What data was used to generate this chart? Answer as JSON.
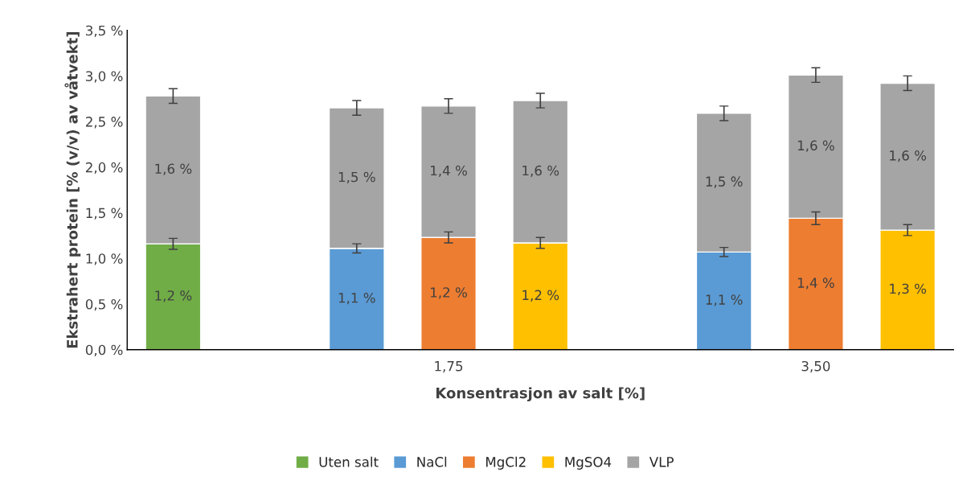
{
  "chart_data": {
    "type": "bar",
    "stacked": true,
    "xlabel": "Konsentrasjon av salt [%]",
    "ylabel": "Ekstrahert protein [% (v/v) av våtvekt]",
    "categories": [
      null,
      null,
      null,
      "1,75",
      null,
      null,
      null,
      "3,50",
      null
    ],
    "series": [
      {
        "name": "Uten salt",
        "color": "#70ad47",
        "values": [
          1.16,
          null,
          null,
          null,
          null,
          null,
          null,
          null,
          null
        ],
        "errors": [
          0.06,
          null,
          null,
          null,
          null,
          null,
          null,
          null,
          null
        ],
        "value_labels": [
          "1,2 %",
          null,
          null,
          null,
          null,
          null,
          null,
          null,
          null
        ]
      },
      {
        "name": "NaCl",
        "color": "#5b9bd5",
        "values": [
          null,
          null,
          1.11,
          null,
          null,
          null,
          1.07,
          null,
          null
        ],
        "errors": [
          null,
          null,
          0.05,
          null,
          null,
          null,
          0.05,
          null,
          null
        ],
        "value_labels": [
          null,
          null,
          "1,1 %",
          null,
          null,
          null,
          "1,1 %",
          null,
          null
        ]
      },
      {
        "name": "MgCl2",
        "color": "#ed7d31",
        "values": [
          null,
          null,
          null,
          1.23,
          null,
          null,
          null,
          1.44,
          null
        ],
        "errors": [
          null,
          null,
          null,
          0.06,
          null,
          null,
          null,
          0.07,
          null
        ],
        "value_labels": [
          null,
          null,
          null,
          "1,2 %",
          null,
          null,
          null,
          "1,4 %",
          null
        ]
      },
      {
        "name": "MgSO4",
        "color": "#ffc000",
        "values": [
          null,
          null,
          null,
          null,
          1.17,
          null,
          null,
          null,
          1.31
        ],
        "errors": [
          null,
          null,
          null,
          null,
          0.06,
          null,
          null,
          null,
          0.06
        ],
        "value_labels": [
          null,
          null,
          null,
          null,
          "1,2 %",
          null,
          null,
          null,
          "1,3 %"
        ]
      },
      {
        "name": "VLP",
        "color": "#a5a5a5",
        "values": [
          1.62,
          null,
          1.54,
          1.44,
          1.56,
          null,
          1.52,
          1.57,
          1.61
        ],
        "errors": [
          0.08,
          null,
          0.08,
          0.08,
          0.08,
          null,
          0.08,
          0.08,
          0.08
        ],
        "value_labels": [
          "1,6 %",
          null,
          "1,5 %",
          "1,4 %",
          "1,6 %",
          null,
          "1,5 %",
          "1,6 %",
          "1,6 %"
        ]
      }
    ],
    "ylim": [
      0,
      3.5
    ],
    "yticks": [
      {
        "value": 0,
        "label": "0,0 %"
      },
      {
        "value": 0.5,
        "label": "0,5 %"
      },
      {
        "value": 1.0,
        "label": "1,0 %"
      },
      {
        "value": 1.5,
        "label": "1,5 %"
      },
      {
        "value": 2.0,
        "label": "2,0 %"
      },
      {
        "value": 2.5,
        "label": "2,5 %"
      },
      {
        "value": 3.0,
        "label": "3,0 %"
      },
      {
        "value": 3.5,
        "label": "3,5 %"
      }
    ],
    "grid": false,
    "legend": "bottom"
  }
}
